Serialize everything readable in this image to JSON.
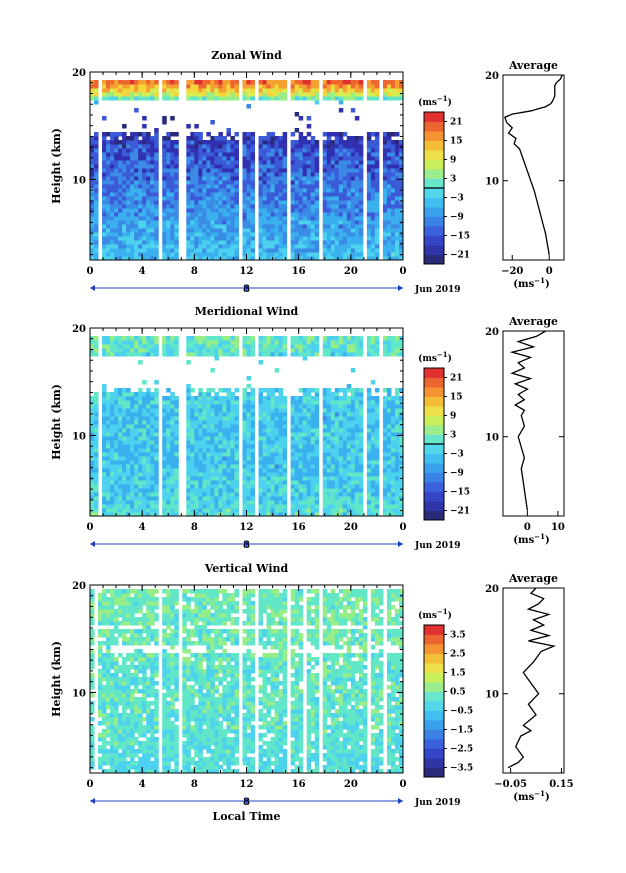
{
  "chart_data": [
    {
      "type": "heatmap",
      "title": "Zonal Wind",
      "ylabel": "Height (km)",
      "x_ticks": [
        "0",
        "4",
        "8",
        "12",
        "16",
        "20",
        "0"
      ],
      "date_label": "8",
      "month_label": "Jun 2019",
      "y_ticks": [
        "20",
        "10"
      ],
      "ylim": [
        2.5,
        20
      ],
      "xlim": [
        0,
        24
      ],
      "colorbar": {
        "unit": "(ms",
        "unit_exp": "−1",
        "unit_close": ")",
        "ticks": [
          "21",
          "15",
          "9",
          "3",
          "−3",
          "−9",
          "−15",
          "−21"
        ],
        "range": [
          -24,
          24
        ],
        "zero_line": true
      },
      "data_gaps_hours": [
        [
          0.7,
          0.9
        ],
        [
          5.3,
          5.6
        ],
        [
          6.9,
          7.3
        ],
        [
          11.4,
          11.7
        ],
        [
          12.6,
          12.9
        ],
        [
          15.2,
          15.4
        ],
        [
          15.9,
          16.1
        ],
        [
          17.4,
          17.8
        ],
        [
          21.0,
          21.2
        ],
        [
          22.1,
          22.4
        ]
      ],
      "profile_levels_km": [
        3,
        4,
        5,
        6,
        7,
        8,
        9,
        10,
        11,
        12,
        13,
        14,
        15,
        16,
        17,
        18,
        19
      ],
      "profile_values": [
        -6,
        -7,
        -8,
        -9,
        -10,
        -11,
        -12,
        -13,
        -14,
        -15,
        -16,
        -18,
        -19,
        -20,
        -8,
        8,
        18
      ],
      "average": {
        "title": "Average",
        "y_ticks": [
          "20",
          "10"
        ],
        "x_ticks": [
          "−20",
          "0"
        ],
        "xlim": [
          -25,
          8
        ],
        "xlabel": "(ms",
        "xlabel_exp": "−1",
        "xlabel_close": ")",
        "heights": [
          3,
          4,
          5,
          6,
          7,
          8,
          9,
          10,
          11,
          12,
          13,
          13.5,
          14,
          14.5,
          15,
          15.5,
          16,
          16.3,
          16.6,
          17,
          17.3,
          17.6,
          18,
          18.5,
          19,
          19.3,
          19.6,
          20
        ],
        "values": [
          0,
          -1,
          -2,
          -3.5,
          -5,
          -6.5,
          -8,
          -10,
          -12,
          -14,
          -16,
          -19,
          -18,
          -22,
          -20,
          -23,
          -24,
          -20,
          -10,
          -2,
          1,
          2,
          3,
          3,
          3,
          4,
          6,
          7
        ]
      }
    },
    {
      "type": "heatmap",
      "title": "Meridional Wind",
      "ylabel": "Height (km)",
      "x_ticks": [
        "0",
        "4",
        "8",
        "12",
        "16",
        "20",
        "0"
      ],
      "date_label": "8",
      "month_label": "Jun 2019",
      "y_ticks": [
        "20",
        "10"
      ],
      "ylim": [
        2.5,
        20
      ],
      "xlim": [
        0,
        24
      ],
      "colorbar": {
        "unit": "(ms",
        "unit_exp": "−1",
        "unit_close": ")",
        "ticks": [
          "21",
          "15",
          "9",
          "3",
          "−3",
          "−9",
          "−15",
          "−21"
        ],
        "range": [
          -24,
          24
        ],
        "zero_line": true
      },
      "data_gaps_hours": [
        [
          0.7,
          0.9
        ],
        [
          5.3,
          5.6
        ],
        [
          6.9,
          7.3
        ],
        [
          11.4,
          11.7
        ],
        [
          12.6,
          12.9
        ],
        [
          15.2,
          15.4
        ],
        [
          15.9,
          16.1
        ],
        [
          17.4,
          17.8
        ],
        [
          21.0,
          21.2
        ],
        [
          22.1,
          22.4
        ]
      ],
      "profile_levels_km": [
        3,
        4,
        5,
        6,
        7,
        8,
        9,
        10,
        11,
        12,
        13,
        14,
        15,
        16,
        17,
        18,
        19
      ],
      "profile_values": [
        -2,
        -3,
        -4,
        -4,
        -5,
        -5,
        -5,
        -4,
        -5,
        -5,
        -4,
        -4,
        -3,
        -3,
        -2,
        -1,
        0
      ],
      "average": {
        "title": "Average",
        "y_ticks": [
          "20",
          "10"
        ],
        "x_ticks": [
          "0",
          "10"
        ],
        "xlim": [
          -8,
          12
        ],
        "xlabel": "(ms",
        "xlabel_exp": "−1",
        "xlabel_close": ")",
        "heights": [
          3,
          4,
          5,
          6,
          7,
          8,
          9,
          10,
          11,
          12,
          12.5,
          13,
          13.5,
          14,
          14.5,
          15,
          15.5,
          16,
          16.5,
          17,
          17.5,
          18,
          18.5,
          19,
          19.5,
          20
        ],
        "values": [
          0,
          -0.5,
          -1,
          -1.5,
          -2,
          -1,
          -2,
          -3,
          -1,
          -2,
          -1,
          -4,
          -1,
          -3,
          0,
          -4,
          1,
          -5,
          -1,
          -3,
          1,
          -5,
          2,
          -3,
          3,
          6
        ]
      }
    },
    {
      "type": "heatmap",
      "title": "Vertical Wind",
      "ylabel": "Height (km)",
      "xlabel": "Local Time",
      "x_ticks": [
        "0",
        "4",
        "8",
        "12",
        "16",
        "20",
        "0"
      ],
      "date_label": "8",
      "month_label": "Jun 2019",
      "y_ticks": [
        "20",
        "10"
      ],
      "ylim": [
        2.5,
        20
      ],
      "xlim": [
        0,
        24
      ],
      "colorbar": {
        "unit": "(ms",
        "unit_exp": "−1",
        "unit_close": ")",
        "ticks": [
          "3.5",
          "2.5",
          "1.5",
          "0.5",
          "−0.5",
          "−1.5",
          "−2.5",
          "−3.5"
        ],
        "range": [
          -4,
          4
        ],
        "zero_line": false
      },
      "data_gaps_hours": [
        [
          0.4,
          0.6
        ],
        [
          5.3,
          5.6
        ],
        [
          6.9,
          7.2
        ],
        [
          11.5,
          11.8
        ],
        [
          12.6,
          12.9
        ],
        [
          15.0,
          15.3
        ],
        [
          16.4,
          16.6
        ],
        [
          17.4,
          17.7
        ],
        [
          21.3,
          21.5
        ],
        [
          22.4,
          22.7
        ]
      ],
      "profile_levels_km": [
        3,
        4,
        5,
        6,
        7,
        8,
        9,
        10,
        11,
        12,
        13,
        14,
        15,
        16,
        17,
        18,
        19
      ],
      "profile_values": [
        -0.3,
        -0.3,
        -0.2,
        -0.2,
        -0.1,
        -0.1,
        0,
        0,
        -0.1,
        -0.1,
        0,
        0,
        0.1,
        0.1,
        0.2,
        0.2,
        0.2
      ],
      "average": {
        "title": "Average",
        "y_ticks": [
          "20",
          "10"
        ],
        "x_ticks": [
          "−0.05",
          "0.15"
        ],
        "xlim": [
          -0.08,
          0.16
        ],
        "xlabel": "(ms",
        "xlabel_exp": "−1",
        "xlabel_close": ")",
        "heights": [
          3,
          3.5,
          4,
          5,
          6,
          6.5,
          7,
          8,
          9,
          10,
          11,
          12,
          13,
          14,
          14.5,
          15,
          15.5,
          16,
          16.5,
          17,
          17.5,
          18,
          18.5,
          19,
          19.5,
          20
        ],
        "values": [
          -0.06,
          -0.02,
          0.0,
          -0.03,
          -0.01,
          0.03,
          0.0,
          0.05,
          0.02,
          0.06,
          0.03,
          0.0,
          0.04,
          0.07,
          0.12,
          0.02,
          0.1,
          0.03,
          0.08,
          0.04,
          0.1,
          0.02,
          0.06,
          0.08,
          0.03,
          0.05
        ]
      }
    }
  ]
}
